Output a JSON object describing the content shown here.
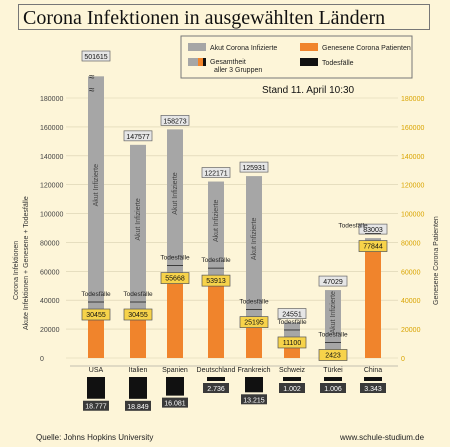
{
  "title": "Corona Infektionen in ausgewählten Ländern",
  "stand": "Stand 11. April 10:30",
  "source": "Quelle: Johns Hopkins University",
  "website": "www.schule-studium.de",
  "colors": {
    "infected": "#a6a6a6",
    "recovered": "#f0842c",
    "deaths": "#111111",
    "right_axis": "#d9a400",
    "background": "#fdf5d8"
  },
  "chart_data": {
    "type": "bar",
    "title": "Corona Infektionen in ausgewählten Ländern",
    "ylabel_left": "Corona Infektionen\nAkute Infektionen + Genesene + Todesfälle",
    "ylabel_right": "Genesene Corona Patienten",
    "ylim": [
      0,
      180000
    ],
    "yticks": [
      0,
      20000,
      40000,
      60000,
      80000,
      100000,
      120000,
      140000,
      160000,
      180000
    ],
    "legend": [
      {
        "name": "Akut Corona Infizierte",
        "color": "#a6a6a6"
      },
      {
        "name": "Genesene Corona Patienten",
        "color": "#f0842c"
      },
      {
        "name": "Gesamtheit aller 3 Gruppen",
        "color": "mixed"
      },
      {
        "name": "Todesfälle",
        "color": "#111111"
      }
    ],
    "categories": [
      "USA",
      "Italien",
      "Spanien",
      "Deutschland",
      "Frankreich",
      "Schweiz",
      "Türkei",
      "China"
    ],
    "totals": [
      501615,
      147577,
      158273,
      122171,
      125931,
      24551,
      47029,
      83003
    ],
    "recovered": [
      30455,
      30455,
      55668,
      53913,
      25195,
      11100,
      2423,
      77844
    ],
    "deaths": [
      18777,
      18849,
      16081,
      2736,
      13215,
      1002,
      1006,
      3343
    ],
    "deaths_labels": [
      "18.777",
      "18.849",
      "16.081",
      "2.736",
      "13.215",
      "1.002",
      "1.006",
      "3.343"
    ],
    "bar_text": "Akut Infizierte",
    "deaths_tag": "Todesfälle",
    "axis_break_on": "USA"
  }
}
